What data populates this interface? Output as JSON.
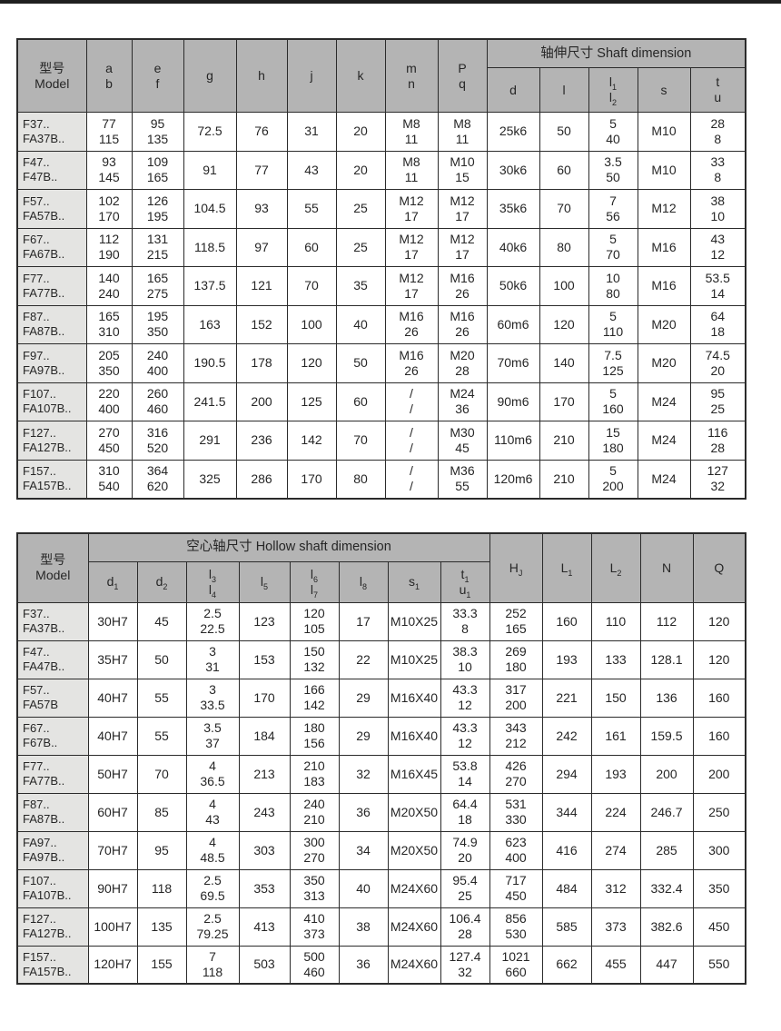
{
  "page": {
    "description": "Gear reducer catalog specification page with two dimension tables",
    "top_bar_color": "#1f1f1f",
    "background": "#ffffff"
  },
  "colors": {
    "header_bg": "#b4b4b4",
    "model_col_bg": "#e4e4e2",
    "cell_bg": "#ffffff",
    "border": "#2b2b2b",
    "text": "#262626"
  },
  "tables": [
    {
      "title": "轴伸尺寸 Shaft dimension",
      "header_rows": [
        [
          {
            "t": [
              "型号",
              "Model"
            ],
            "rs": 2,
            "name": "model-header"
          },
          {
            "t": [
              "a",
              "b"
            ],
            "rs": 2,
            "name": "col-a-b-header"
          },
          {
            "t": [
              "e",
              "f"
            ],
            "rs": 2,
            "name": "col-e-f-header"
          },
          {
            "t": "g",
            "rs": 2,
            "name": "col-g-header"
          },
          {
            "t": "h",
            "rs": 2,
            "name": "col-h-header"
          },
          {
            "t": "j",
            "rs": 2,
            "name": "col-j-header"
          },
          {
            "t": "k",
            "rs": 2,
            "name": "col-k-header"
          },
          {
            "t": [
              "m",
              "n"
            ],
            "rs": 2,
            "name": "col-m-n-header"
          },
          {
            "t": [
              "P",
              "q"
            ],
            "rs": 2,
            "name": "col-P-q-header"
          },
          {
            "t": "轴伸尺寸  Shaft dimension",
            "cs": 5,
            "cls": "group-h",
            "name": "shaft-dimension-group-header"
          }
        ],
        [
          {
            "t": "d",
            "name": "col-d-header"
          },
          {
            "t": "l",
            "name": "col-l-header"
          },
          {
            "t": [
              "l|1",
              "l|2"
            ],
            "name": "col-l1-l2-header"
          },
          {
            "t": "s",
            "name": "col-s-header"
          },
          {
            "t": [
              "t",
              "u"
            ],
            "name": "col-t-u-header"
          }
        ]
      ],
      "rows": [
        [
          [
            "F37..",
            "FA37B.."
          ],
          [
            "77",
            "115"
          ],
          [
            "95",
            "135"
          ],
          "72.5",
          "76",
          "31",
          "20",
          [
            "M8",
            "11"
          ],
          [
            "M8",
            "11"
          ],
          "25k6",
          "50",
          [
            "5",
            "40"
          ],
          "M10",
          [
            "28",
            "8"
          ]
        ],
        [
          [
            "F47..",
            "F47B.."
          ],
          [
            "93",
            "145"
          ],
          [
            "109",
            "165"
          ],
          "91",
          "77",
          "43",
          "20",
          [
            "M8",
            "11"
          ],
          [
            "M10",
            "15"
          ],
          "30k6",
          "60",
          [
            "3.5",
            "50"
          ],
          "M10",
          [
            "33",
            "8"
          ]
        ],
        [
          [
            "F57..",
            "FA57B.."
          ],
          [
            "102",
            "170"
          ],
          [
            "126",
            "195"
          ],
          "104.5",
          "93",
          "55",
          "25",
          [
            "M12",
            "17"
          ],
          [
            "M12",
            "17"
          ],
          "35k6",
          "70",
          [
            "7",
            "56"
          ],
          "M12",
          [
            "38",
            "10"
          ]
        ],
        [
          [
            "F67..",
            "FA67B.."
          ],
          [
            "112",
            "190"
          ],
          [
            "131",
            "215"
          ],
          "118.5",
          "97",
          "60",
          "25",
          [
            "M12",
            "17"
          ],
          [
            "M12",
            "17"
          ],
          "40k6",
          "80",
          [
            "5",
            "70"
          ],
          "M16",
          [
            "43",
            "12"
          ]
        ],
        [
          [
            "F77..",
            "FA77B.."
          ],
          [
            "140",
            "240"
          ],
          [
            "165",
            "275"
          ],
          "137.5",
          "121",
          "70",
          "35",
          [
            "M12",
            "17"
          ],
          [
            "M16",
            "26"
          ],
          "50k6",
          "100",
          [
            "10",
            "80"
          ],
          "M16",
          [
            "53.5",
            "14"
          ]
        ],
        [
          [
            "F87..",
            "FA87B.."
          ],
          [
            "165",
            "310"
          ],
          [
            "195",
            "350"
          ],
          "163",
          "152",
          "100",
          "40",
          [
            "M16",
            "26"
          ],
          [
            "M16",
            "26"
          ],
          "60m6",
          "120",
          [
            "5",
            "110"
          ],
          "M20",
          [
            "64",
            "18"
          ]
        ],
        [
          [
            "F97..",
            "FA97B.."
          ],
          [
            "205",
            "350"
          ],
          [
            "240",
            "400"
          ],
          "190.5",
          "178",
          "120",
          "50",
          [
            "M16",
            "26"
          ],
          [
            "M20",
            "28"
          ],
          "70m6",
          "140",
          [
            "7.5",
            "125"
          ],
          "M20",
          [
            "74.5",
            "20"
          ]
        ],
        [
          [
            "F107..",
            "FA107B.."
          ],
          [
            "220",
            "400"
          ],
          [
            "260",
            "460"
          ],
          "241.5",
          "200",
          "125",
          "60",
          [
            "/",
            "/"
          ],
          [
            "M24",
            "36"
          ],
          "90m6",
          "170",
          [
            "5",
            "160"
          ],
          "M24",
          [
            "95",
            "25"
          ]
        ],
        [
          [
            "F127..",
            "FA127B.."
          ],
          [
            "270",
            "450"
          ],
          [
            "316",
            "520"
          ],
          "291",
          "236",
          "142",
          "70",
          [
            "/",
            "/"
          ],
          [
            "M30",
            "45"
          ],
          "110m6",
          "210",
          [
            "15",
            "180"
          ],
          "M24",
          [
            "116",
            "28"
          ]
        ],
        [
          [
            "F157..",
            "FA157B.."
          ],
          [
            "310",
            "540"
          ],
          [
            "364",
            "620"
          ],
          "325",
          "286",
          "170",
          "80",
          [
            "/",
            "/"
          ],
          [
            "M36",
            "55"
          ],
          "120m6",
          "210",
          [
            "5",
            "200"
          ],
          "M24",
          [
            "127",
            "32"
          ]
        ]
      ]
    },
    {
      "title": "空心轴尺寸 Hollow shaft dimension",
      "header_rows": [
        [
          {
            "t": [
              "型号",
              "Model"
            ],
            "rs": 2,
            "name": "model-header"
          },
          {
            "t": "空心轴尺寸  Hollow shaft dimension",
            "cs": 8,
            "cls": "group-h",
            "name": "hollow-shaft-group-header"
          },
          {
            "t": "H|J",
            "rs": 2,
            "name": "col-HJ-header"
          },
          {
            "t": "L|1",
            "rs": 2,
            "name": "col-L1-header"
          },
          {
            "t": "L|2",
            "rs": 2,
            "name": "col-L2-header"
          },
          {
            "t": "N",
            "rs": 2,
            "name": "col-N-header"
          },
          {
            "t": "Q",
            "rs": 2,
            "name": "col-Q-header"
          }
        ],
        [
          {
            "t": "d|1",
            "name": "col-d1-header"
          },
          {
            "t": "d|2",
            "name": "col-d2-header"
          },
          {
            "t": [
              "l|3",
              "l|4"
            ],
            "name": "col-l3-l4-header"
          },
          {
            "t": "l|5",
            "name": "col-l5-header"
          },
          {
            "t": [
              "l|6",
              "l|7"
            ],
            "name": "col-l6-l7-header"
          },
          {
            "t": "l|8",
            "name": "col-l8-header"
          },
          {
            "t": "s|1",
            "name": "col-s1-header"
          },
          {
            "t": [
              "t|1",
              "u|1"
            ],
            "name": "col-t1-u1-header"
          }
        ]
      ],
      "rows": [
        [
          [
            "F37..",
            "FA37B.."
          ],
          "30H7",
          "45",
          [
            "2.5",
            "22.5"
          ],
          "123",
          [
            "120",
            "105"
          ],
          "17",
          "M10X25",
          [
            "33.3",
            "8"
          ],
          [
            "252",
            "165"
          ],
          "160",
          "110",
          "112",
          "120"
        ],
        [
          [
            "F47..",
            "FA47B.."
          ],
          "35H7",
          "50",
          [
            "3",
            "31"
          ],
          "153",
          [
            "150",
            "132"
          ],
          "22",
          "M10X25",
          [
            "38.3",
            "10"
          ],
          [
            "269",
            "180"
          ],
          "193",
          "133",
          "128.1",
          "120"
        ],
        [
          [
            "F57..",
            "FA57B"
          ],
          "40H7",
          "55",
          [
            "3",
            "33.5"
          ],
          "170",
          [
            "166",
            "142"
          ],
          "29",
          "M16X40",
          [
            "43.3",
            "12"
          ],
          [
            "317",
            "200"
          ],
          "221",
          "150",
          "136",
          "160"
        ],
        [
          [
            "F67..",
            "F67B.."
          ],
          "40H7",
          "55",
          [
            "3.5",
            "37"
          ],
          "184",
          [
            "180",
            "156"
          ],
          "29",
          "M16X40",
          [
            "43.3",
            "12"
          ],
          [
            "343",
            "212"
          ],
          "242",
          "161",
          "159.5",
          "160"
        ],
        [
          [
            "F77..",
            "FA77B.."
          ],
          "50H7",
          "70",
          [
            "4",
            "36.5"
          ],
          "213",
          [
            "210",
            "183"
          ],
          "32",
          "M16X45",
          [
            "53.8",
            "14"
          ],
          [
            "426",
            "270"
          ],
          "294",
          "193",
          "200",
          "200"
        ],
        [
          [
            "F87..",
            "FA87B.."
          ],
          "60H7",
          "85",
          [
            "4",
            "43"
          ],
          "243",
          [
            "240",
            "210"
          ],
          "36",
          "M20X50",
          [
            "64.4",
            "18"
          ],
          [
            "531",
            "330"
          ],
          "344",
          "224",
          "246.7",
          "250"
        ],
        [
          [
            "FA97..",
            "FA97B.."
          ],
          "70H7",
          "95",
          [
            "4",
            "48.5"
          ],
          "303",
          [
            "300",
            "270"
          ],
          "34",
          "M20X50",
          [
            "74.9",
            "20"
          ],
          [
            "623",
            "400"
          ],
          "416",
          "274",
          "285",
          "300"
        ],
        [
          [
            "F107..",
            "FA107B.."
          ],
          "90H7",
          "118",
          [
            "2.5",
            "69.5"
          ],
          "353",
          [
            "350",
            "313"
          ],
          "40",
          "M24X60",
          [
            "95.4",
            "25"
          ],
          [
            "717",
            "450"
          ],
          "484",
          "312",
          "332.4",
          "350"
        ],
        [
          [
            "F127..",
            "FA127B.."
          ],
          "100H7",
          "135",
          [
            "2.5",
            "79.25"
          ],
          "413",
          [
            "410",
            "373"
          ],
          "38",
          "M24X60",
          [
            "106.4",
            "28"
          ],
          [
            "856",
            "530"
          ],
          "585",
          "373",
          "382.6",
          "450"
        ],
        [
          [
            "F157..",
            "FA157B.."
          ],
          "120H7",
          "155",
          [
            "7",
            "118"
          ],
          "503",
          [
            "500",
            "460"
          ],
          "36",
          "M24X60",
          [
            "127.4",
            "32"
          ],
          [
            "1021",
            "660"
          ],
          "662",
          "455",
          "447",
          "550"
        ]
      ]
    }
  ]
}
